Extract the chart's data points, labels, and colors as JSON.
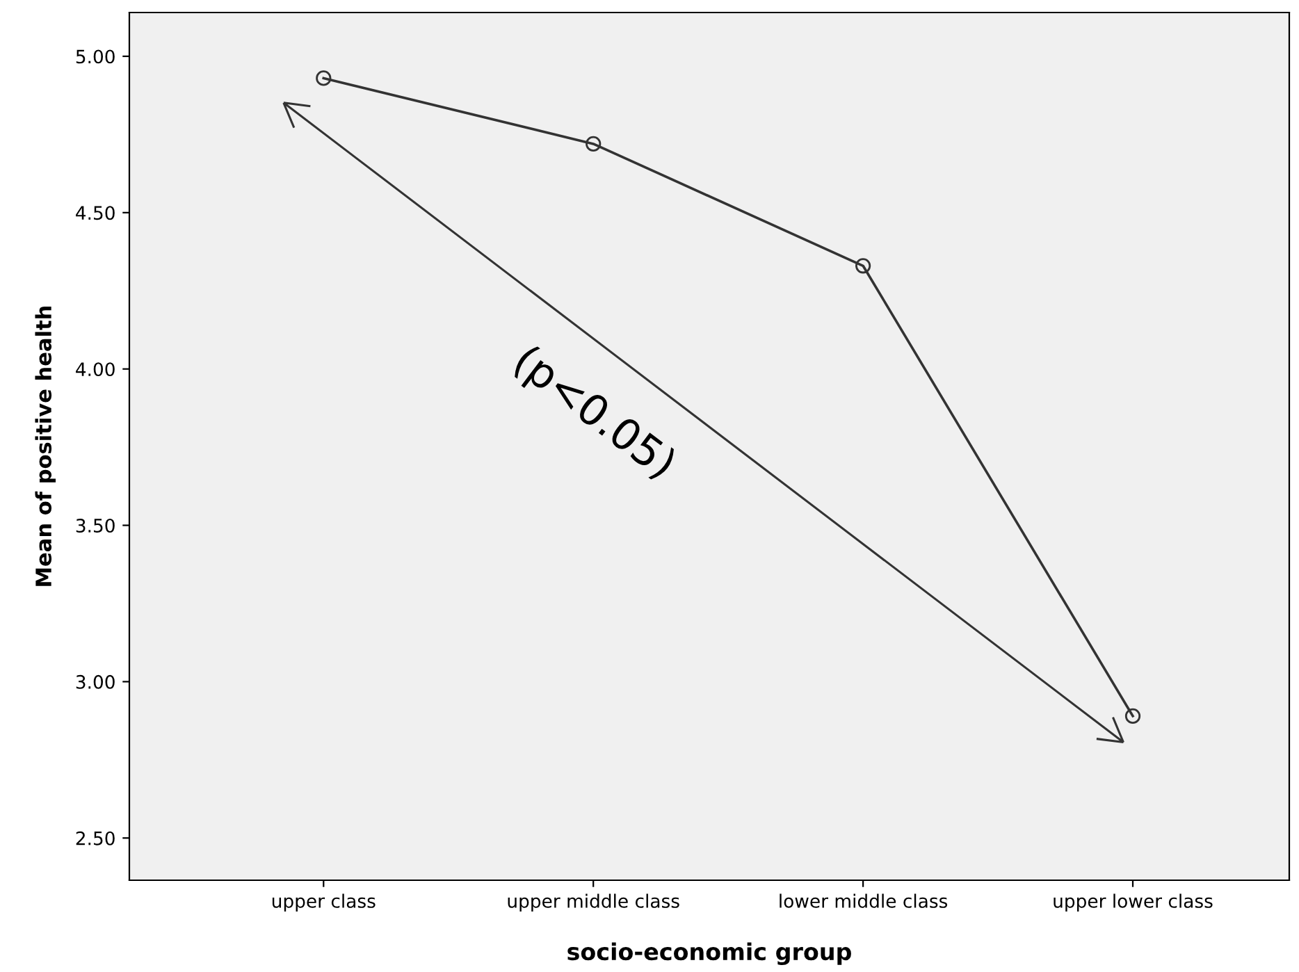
{
  "chart_data": {
    "type": "line",
    "xlabel": "socio-economic group",
    "ylabel": "Mean of positive health",
    "categories": [
      "upper class",
      "upper middle class",
      "lower middle class",
      "upper lower class"
    ],
    "series": [
      {
        "color": "#333333",
        "values": [
          4.93,
          4.72,
          4.33,
          2.89
        ]
      }
    ],
    "ylim": [
      2.365,
      5.14
    ],
    "yticks": [
      {
        "value": 2.5,
        "label": "2.50"
      },
      {
        "value": 3.0,
        "label": "3.00"
      },
      {
        "value": 3.5,
        "label": "3.50"
      },
      {
        "value": 4.0,
        "label": "4.00"
      },
      {
        "value": 4.5,
        "label": "4.50"
      },
      {
        "value": 5.0,
        "label": "5.00"
      }
    ],
    "grid": false,
    "marker": "circle",
    "line_style": "solid",
    "annotations": [
      "(p<0.05)"
    ]
  }
}
